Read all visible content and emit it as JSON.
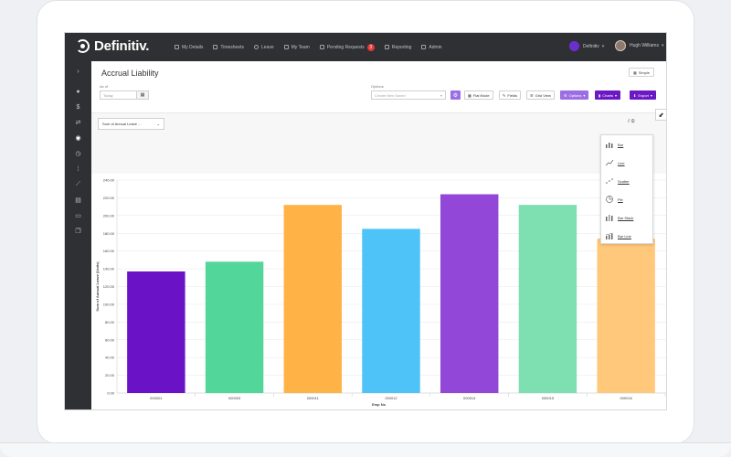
{
  "app": {
    "brand": "Definitiv."
  },
  "nav": {
    "items": [
      {
        "label": "My Details",
        "icon": "user-icon"
      },
      {
        "label": "Timesheets",
        "icon": "calendar-icon"
      },
      {
        "label": "Leave",
        "icon": "clock-icon"
      },
      {
        "label": "My Team",
        "icon": "team-icon"
      },
      {
        "label": "Pending Requests",
        "icon": "check-icon",
        "badge": "3"
      },
      {
        "label": "Reporting",
        "icon": "chart-icon"
      },
      {
        "label": "Admin",
        "icon": "gear-icon"
      }
    ],
    "org": "Definitiv",
    "user": "Hugh Williams"
  },
  "rail": {
    "icons": [
      "chevron-right-icon",
      "user-icon",
      "dollar-icon",
      "exchange-icon",
      "compass-icon",
      "clock-icon",
      "grid-icon",
      "line-chart-icon",
      "document-icon",
      "folder-icon",
      "copy-icon"
    ]
  },
  "page": {
    "title": "Accrual Liability",
    "simple_label": "Simple",
    "as_of_label": "As of",
    "as_of_placeholder": "Today",
    "options_label": "Options",
    "saved_placeholder": "Create New Saved",
    "buttons": {
      "flat_mode": "Flat Mode",
      "fields": "Fields",
      "grid_view": "Grid View",
      "options": "Options",
      "charts": "Charts",
      "export": "Export"
    },
    "measure": "Sum of Annual Leave ..."
  },
  "chart_menu": {
    "items": [
      "Bar",
      "Line",
      "Scatter",
      "Pie",
      "Bar Stack",
      "Bar Line"
    ]
  },
  "colors": {
    "accent": "#9b6ee3",
    "accent_dark": "#6b18c5",
    "nav_bg": "#2f3033"
  },
  "chart_data": {
    "type": "bar",
    "categories": [
      "000001",
      "000003",
      "000011",
      "000012",
      "000014",
      "000015",
      "000016"
    ],
    "values": [
      137,
      148,
      212,
      185,
      224,
      212,
      174
    ],
    "colors": [
      "#6a12c6",
      "#52d69a",
      "#ffb347",
      "#4ec3f7",
      "#9347d8",
      "#7edfb0",
      "#ffc87a"
    ],
    "xlabel": "Emp No",
    "ylabel": "Sum of Annual Leave (Units)",
    "yticks": [
      "0.00",
      "20.00",
      "40.00",
      "60.00",
      "80.00",
      "100.00",
      "120.00",
      "140.00",
      "160.00",
      "180.00",
      "200.00",
      "220.00",
      "240.00"
    ],
    "ylim": [
      0,
      240
    ],
    "grid": true
  }
}
